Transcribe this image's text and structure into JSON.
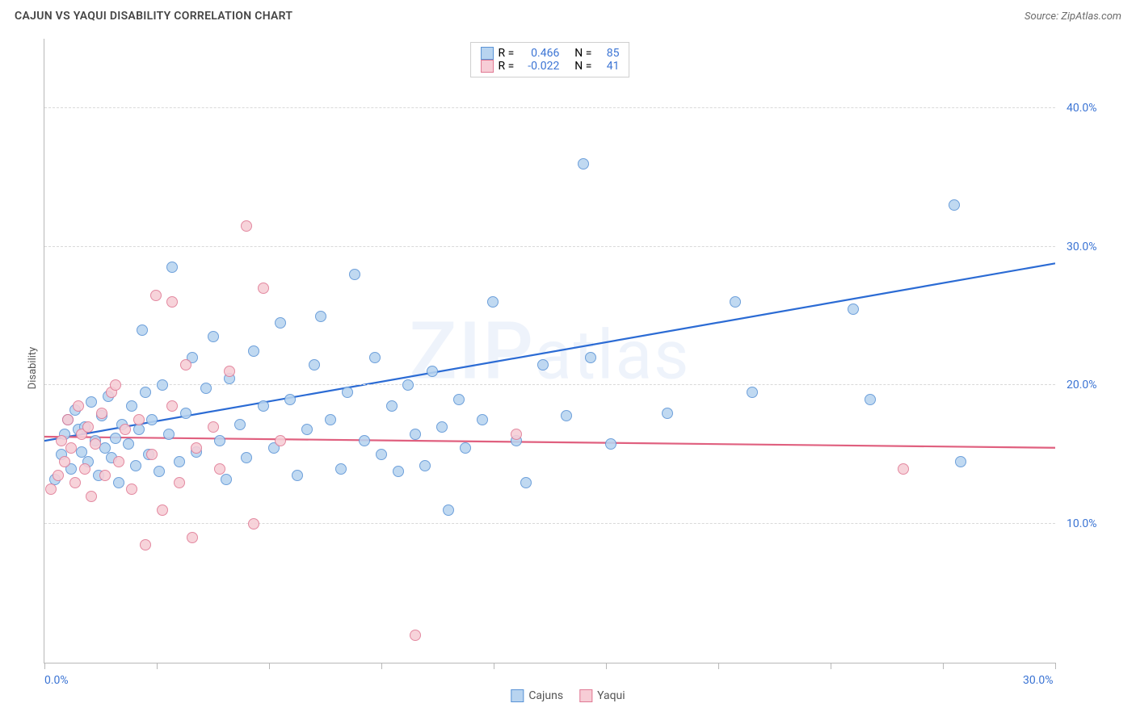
{
  "title": "CAJUN VS YAQUI DISABILITY CORRELATION CHART",
  "source": "Source: ZipAtlas.com",
  "watermark": "ZIPatlas",
  "chart": {
    "type": "scatter",
    "xlim": [
      0,
      30
    ],
    "ylim": [
      0,
      45
    ],
    "x_unit": "%",
    "y_unit": "%",
    "ylabel": "Disability",
    "x_ticks": [
      0,
      3.33,
      6.67,
      10,
      13.33,
      16.67,
      20,
      23.33,
      26.67,
      30
    ],
    "x_visible_labels": {
      "0": "0.0%",
      "30": "30.0%"
    },
    "y_gridlines": [
      10,
      20,
      30,
      40
    ],
    "y_labels": {
      "10": "10.0%",
      "20": "20.0%",
      "30": "30.0%",
      "40": "40.0%"
    },
    "background_color": "#ffffff",
    "grid_color": "#d9d9d9",
    "grid_style": "dashed",
    "axis_color": "#b8b8b8",
    "ylabel_fontsize": 13,
    "tick_label_color": "#3b74d4",
    "tick_label_fontsize": 14,
    "marker_size": 14,
    "series": [
      {
        "name": "Cajuns",
        "fill": "#b8d4f0",
        "stroke": "#5a93d6",
        "r": 0.466,
        "n": 85,
        "trend": {
          "y_at_x0": 16.0,
          "y_at_xmax": 28.8,
          "color": "#2b6bd4",
          "width": 2.2
        },
        "points": [
          [
            0.3,
            13.2
          ],
          [
            0.5,
            15.0
          ],
          [
            0.6,
            16.5
          ],
          [
            0.7,
            17.5
          ],
          [
            0.8,
            14.0
          ],
          [
            0.9,
            18.2
          ],
          [
            1.0,
            16.8
          ],
          [
            1.1,
            15.2
          ],
          [
            1.2,
            17.0
          ],
          [
            1.3,
            14.5
          ],
          [
            1.4,
            18.8
          ],
          [
            1.5,
            16.0
          ],
          [
            1.6,
            13.5
          ],
          [
            1.7,
            17.8
          ],
          [
            1.8,
            15.5
          ],
          [
            1.9,
            19.2
          ],
          [
            2.0,
            14.8
          ],
          [
            2.1,
            16.2
          ],
          [
            2.2,
            13.0
          ],
          [
            2.3,
            17.2
          ],
          [
            2.5,
            15.8
          ],
          [
            2.6,
            18.5
          ],
          [
            2.7,
            14.2
          ],
          [
            2.8,
            16.8
          ],
          [
            2.9,
            24.0
          ],
          [
            3.0,
            19.5
          ],
          [
            3.1,
            15.0
          ],
          [
            3.2,
            17.5
          ],
          [
            3.4,
            13.8
          ],
          [
            3.5,
            20.0
          ],
          [
            3.7,
            16.5
          ],
          [
            3.8,
            28.5
          ],
          [
            4.0,
            14.5
          ],
          [
            4.2,
            18.0
          ],
          [
            4.4,
            22.0
          ],
          [
            4.5,
            15.2
          ],
          [
            4.8,
            19.8
          ],
          [
            5.0,
            23.5
          ],
          [
            5.2,
            16.0
          ],
          [
            5.4,
            13.2
          ],
          [
            5.5,
            20.5
          ],
          [
            5.8,
            17.2
          ],
          [
            6.0,
            14.8
          ],
          [
            6.2,
            22.5
          ],
          [
            6.5,
            18.5
          ],
          [
            6.8,
            15.5
          ],
          [
            7.0,
            24.5
          ],
          [
            7.3,
            19.0
          ],
          [
            7.5,
            13.5
          ],
          [
            7.8,
            16.8
          ],
          [
            8.0,
            21.5
          ],
          [
            8.2,
            25.0
          ],
          [
            8.5,
            17.5
          ],
          [
            8.8,
            14.0
          ],
          [
            9.0,
            19.5
          ],
          [
            9.2,
            28.0
          ],
          [
            9.5,
            16.0
          ],
          [
            9.8,
            22.0
          ],
          [
            10.0,
            15.0
          ],
          [
            10.3,
            18.5
          ],
          [
            10.5,
            13.8
          ],
          [
            10.8,
            20.0
          ],
          [
            11.0,
            16.5
          ],
          [
            11.3,
            14.2
          ],
          [
            11.5,
            21.0
          ],
          [
            11.8,
            17.0
          ],
          [
            12.0,
            11.0
          ],
          [
            12.3,
            19.0
          ],
          [
            12.5,
            15.5
          ],
          [
            13.0,
            17.5
          ],
          [
            13.3,
            26.0
          ],
          [
            14.0,
            16.0
          ],
          [
            14.3,
            13.0
          ],
          [
            14.8,
            21.5
          ],
          [
            15.5,
            17.8
          ],
          [
            16.0,
            36.0
          ],
          [
            16.2,
            22.0
          ],
          [
            16.8,
            15.8
          ],
          [
            18.5,
            18.0
          ],
          [
            20.5,
            26.0
          ],
          [
            21.0,
            19.5
          ],
          [
            24.0,
            25.5
          ],
          [
            24.5,
            19.0
          ],
          [
            27.0,
            33.0
          ],
          [
            27.2,
            14.5
          ]
        ]
      },
      {
        "name": "Yaqui",
        "fill": "#f7cdd6",
        "stroke": "#e07994",
        "r": -0.022,
        "n": 41,
        "trend": {
          "y_at_x0": 16.3,
          "y_at_xmax": 15.5,
          "color": "#e0607f",
          "width": 2.2
        },
        "points": [
          [
            0.2,
            12.5
          ],
          [
            0.4,
            13.5
          ],
          [
            0.5,
            16.0
          ],
          [
            0.6,
            14.5
          ],
          [
            0.7,
            17.5
          ],
          [
            0.8,
            15.5
          ],
          [
            0.9,
            13.0
          ],
          [
            1.0,
            18.5
          ],
          [
            1.1,
            16.5
          ],
          [
            1.2,
            14.0
          ],
          [
            1.3,
            17.0
          ],
          [
            1.4,
            12.0
          ],
          [
            1.5,
            15.8
          ],
          [
            1.7,
            18.0
          ],
          [
            1.8,
            13.5
          ],
          [
            2.0,
            19.5
          ],
          [
            2.1,
            20.0
          ],
          [
            2.2,
            14.5
          ],
          [
            2.4,
            16.8
          ],
          [
            2.6,
            12.5
          ],
          [
            2.8,
            17.5
          ],
          [
            3.0,
            8.5
          ],
          [
            3.2,
            15.0
          ],
          [
            3.3,
            26.5
          ],
          [
            3.5,
            11.0
          ],
          [
            3.8,
            18.5
          ],
          [
            4.0,
            13.0
          ],
          [
            4.2,
            21.5
          ],
          [
            4.4,
            9.0
          ],
          [
            4.5,
            15.5
          ],
          [
            5.0,
            17.0
          ],
          [
            5.2,
            14.0
          ],
          [
            5.5,
            21.0
          ],
          [
            6.0,
            31.5
          ],
          [
            6.2,
            10.0
          ],
          [
            6.5,
            27.0
          ],
          [
            7.0,
            16.0
          ],
          [
            11.0,
            2.0
          ],
          [
            14.0,
            16.5
          ],
          [
            25.5,
            14.0
          ],
          [
            3.8,
            26.0
          ]
        ]
      }
    ],
    "legend_top": {
      "r_label": "R =",
      "n_label": "N ="
    },
    "legend_bottom": [
      {
        "label": "Cajuns",
        "fill": "#b8d4f0",
        "stroke": "#5a93d6"
      },
      {
        "label": "Yaqui",
        "fill": "#f7cdd6",
        "stroke": "#e07994"
      }
    ]
  }
}
